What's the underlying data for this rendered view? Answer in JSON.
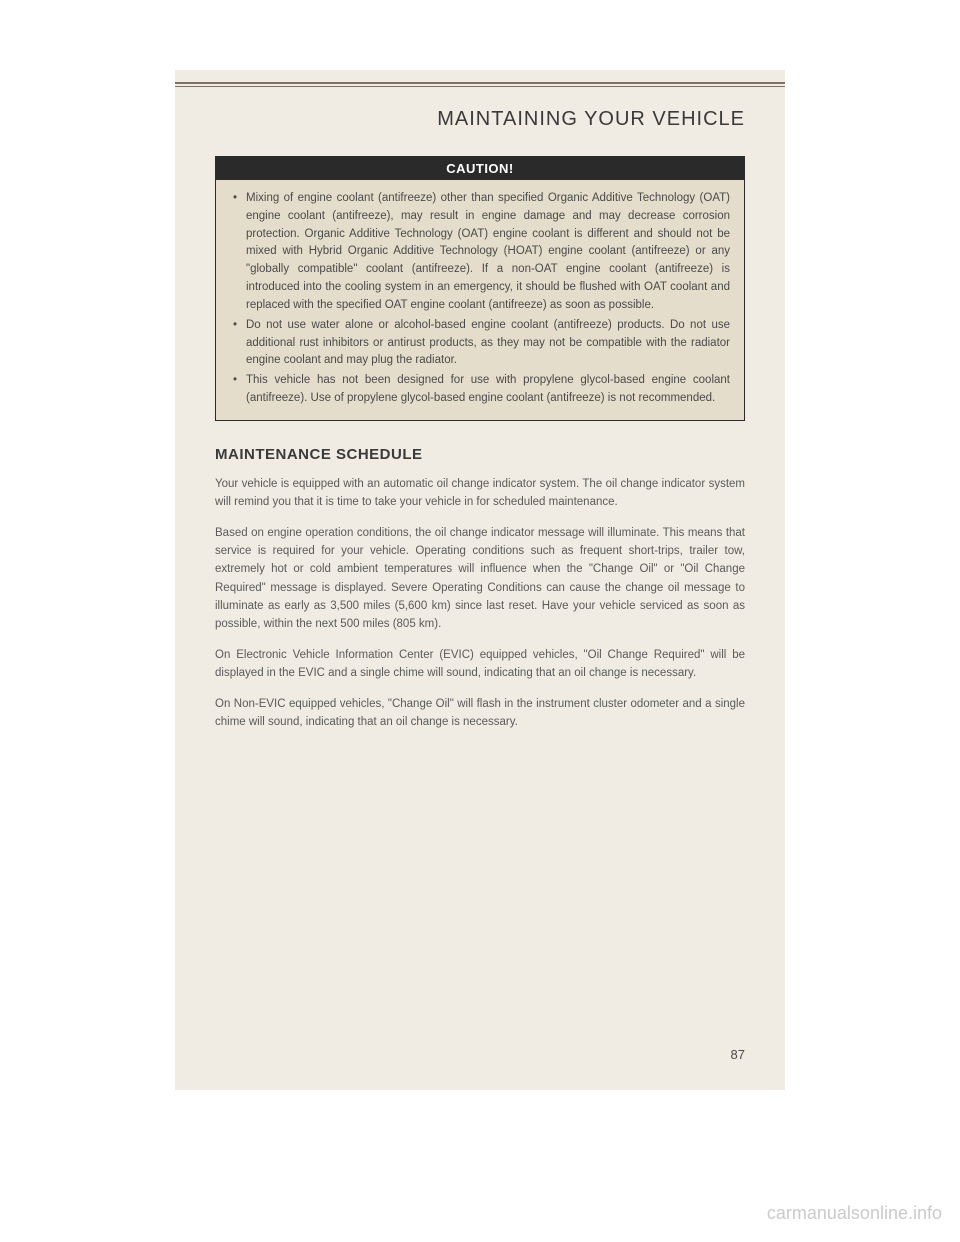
{
  "header": {
    "title": "MAINTAINING YOUR VEHICLE"
  },
  "caution": {
    "label": "CAUTION!",
    "items": [
      "Mixing of engine coolant (antifreeze) other than specified Organic Additive Technology (OAT) engine coolant (antifreeze), may result in engine damage and may decrease corrosion protection. Organic Additive Technology (OAT) engine coolant is different and should not be mixed with Hybrid Organic Additive Technology (HOAT) engine coolant (antifreeze) or any \"globally compatible\" coolant (antifreeze). If a non-OAT engine coolant (antifreeze) is introduced into the cooling system in an emergency, it should be flushed with OAT coolant and replaced with the specified OAT engine coolant (antifreeze) as soon as possible.",
      "Do not use water alone or alcohol-based engine coolant (antifreeze) products. Do not use additional rust inhibitors or antirust products, as they may not be compatible with the radiator engine coolant and may plug the radiator.",
      "This vehicle has not been designed for use with propylene glycol-based engine coolant (antifreeze). Use of propylene glycol-based engine coolant (antifreeze) is not recommended."
    ]
  },
  "section": {
    "heading": "MAINTENANCE SCHEDULE",
    "paragraphs": [
      "Your vehicle is equipped with an automatic oil change indicator system. The oil change indicator system will remind you that it is time to take your vehicle in for scheduled maintenance.",
      "Based on engine operation conditions, the oil change indicator message will illuminate. This means that service is required for your vehicle. Operating conditions such as frequent short-trips, trailer tow, extremely hot or cold ambient temperatures will influence when the \"Change Oil\" or \"Oil Change Required\" message is displayed. Severe Operating Conditions can cause the change oil message to illuminate as early as 3,500 miles (5,600 km) since last reset. Have your vehicle serviced as soon as possible, within the next 500 miles (805 km).",
      "On Electronic Vehicle Information Center (EVIC) equipped vehicles, \"Oil Change Required\" will be displayed in the EVIC and a single chime will sound, indicating that an oil change is necessary.",
      "On Non-EVIC equipped vehicles, \"Change Oil\" will flash in the instrument cluster odometer and a single chime will sound, indicating that an oil change is necessary."
    ]
  },
  "page_number": "87",
  "watermark": "carmanualsonline.info",
  "colors": {
    "page_bg": "#f0ece3",
    "caution_bg": "#e4ddcb",
    "caution_header_bg": "#2a2a2a",
    "text": "#5a5a5a",
    "heading": "#3a3a3a"
  }
}
